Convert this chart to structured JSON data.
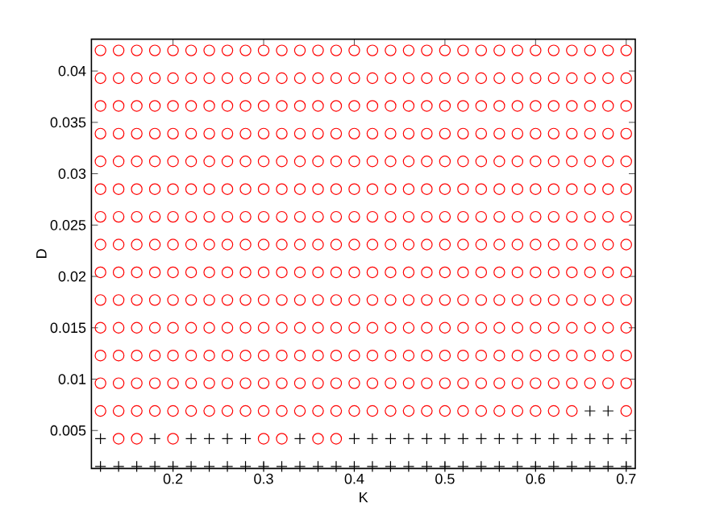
{
  "chart_data": {
    "type": "scatter",
    "xlabel": "K",
    "ylabel": "D",
    "xlim": [
      0.11,
      0.71
    ],
    "ylim": [
      0.0013,
      0.0431
    ],
    "xticks": [
      0.2,
      0.3,
      0.4,
      0.5,
      0.6,
      0.7
    ],
    "yticks": [
      0.005,
      0.01,
      0.015,
      0.02,
      0.025,
      0.03,
      0.035,
      0.04
    ],
    "series": [
      {
        "color": "#ff0000",
        "marker": "circle",
        "x": [
          0.14,
          0.16,
          0.2,
          0.3,
          0.32,
          0.36,
          0.38,
          0.12,
          0.14,
          0.16,
          0.18,
          0.2,
          0.22,
          0.24,
          0.26,
          0.28,
          0.3,
          0.32,
          0.34,
          0.36,
          0.38,
          0.4,
          0.42,
          0.44,
          0.46,
          0.48,
          0.5,
          0.52,
          0.54,
          0.56,
          0.58,
          0.6,
          0.62,
          0.64,
          0.7,
          0.12,
          0.14,
          0.16,
          0.18,
          0.2,
          0.22,
          0.24,
          0.26,
          0.28,
          0.3,
          0.32,
          0.34,
          0.36,
          0.38,
          0.4,
          0.42,
          0.44,
          0.46,
          0.48,
          0.5,
          0.52,
          0.54,
          0.56,
          0.58,
          0.6,
          0.62,
          0.64,
          0.66,
          0.68,
          0.7,
          0.12,
          0.14,
          0.16,
          0.18,
          0.2,
          0.22,
          0.24,
          0.26,
          0.28,
          0.3,
          0.32,
          0.34,
          0.36,
          0.38,
          0.4,
          0.42,
          0.44,
          0.46,
          0.48,
          0.5,
          0.52,
          0.54,
          0.56,
          0.58,
          0.6,
          0.62,
          0.64,
          0.66,
          0.68,
          0.7,
          0.12,
          0.14,
          0.16,
          0.18,
          0.2,
          0.22,
          0.24,
          0.26,
          0.28,
          0.3,
          0.32,
          0.34,
          0.36,
          0.38,
          0.4,
          0.42,
          0.44,
          0.46,
          0.48,
          0.5,
          0.52,
          0.54,
          0.56,
          0.58,
          0.6,
          0.62,
          0.64,
          0.66,
          0.68,
          0.7,
          0.12,
          0.14,
          0.16,
          0.18,
          0.2,
          0.22,
          0.24,
          0.26,
          0.28,
          0.3,
          0.32,
          0.34,
          0.36,
          0.38,
          0.4,
          0.42,
          0.44,
          0.46,
          0.48,
          0.5,
          0.52,
          0.54,
          0.56,
          0.58,
          0.6,
          0.62,
          0.64,
          0.66,
          0.68,
          0.7,
          0.12,
          0.14,
          0.16,
          0.18,
          0.2,
          0.22,
          0.24,
          0.26,
          0.28,
          0.3,
          0.32,
          0.34,
          0.36,
          0.38,
          0.4,
          0.42,
          0.44,
          0.46,
          0.48,
          0.5,
          0.52,
          0.54,
          0.56,
          0.58,
          0.6,
          0.62,
          0.64,
          0.66,
          0.68,
          0.7,
          0.12,
          0.14,
          0.16,
          0.18,
          0.2,
          0.22,
          0.24,
          0.26,
          0.28,
          0.3,
          0.32,
          0.34,
          0.36,
          0.38,
          0.4,
          0.42,
          0.44,
          0.46,
          0.48,
          0.5,
          0.52,
          0.54,
          0.56,
          0.58,
          0.6,
          0.62,
          0.64,
          0.66,
          0.68,
          0.7,
          0.12,
          0.14,
          0.16,
          0.18,
          0.2,
          0.22,
          0.24,
          0.26,
          0.28,
          0.3,
          0.32,
          0.34,
          0.36,
          0.38,
          0.4,
          0.42,
          0.44,
          0.46,
          0.48,
          0.5,
          0.52,
          0.54,
          0.56,
          0.58,
          0.6,
          0.62,
          0.64,
          0.66,
          0.68,
          0.7,
          0.12,
          0.14,
          0.16,
          0.18,
          0.2,
          0.22,
          0.24,
          0.26,
          0.28,
          0.3,
          0.32,
          0.34,
          0.36,
          0.38,
          0.4,
          0.42,
          0.44,
          0.46,
          0.48,
          0.5,
          0.52,
          0.54,
          0.56,
          0.58,
          0.6,
          0.62,
          0.64,
          0.66,
          0.68,
          0.7,
          0.12,
          0.14,
          0.16,
          0.18,
          0.2,
          0.22,
          0.24,
          0.26,
          0.28,
          0.3,
          0.32,
          0.34,
          0.36,
          0.38,
          0.4,
          0.42,
          0.44,
          0.46,
          0.48,
          0.5,
          0.52,
          0.54,
          0.56,
          0.58,
          0.6,
          0.62,
          0.64,
          0.66,
          0.68,
          0.7,
          0.12,
          0.14,
          0.16,
          0.18,
          0.2,
          0.22,
          0.24,
          0.26,
          0.28,
          0.3,
          0.32,
          0.34,
          0.36,
          0.38,
          0.4,
          0.42,
          0.44,
          0.46,
          0.48,
          0.5,
          0.52,
          0.54,
          0.56,
          0.58,
          0.6,
          0.62,
          0.64,
          0.66,
          0.68,
          0.7,
          0.12,
          0.14,
          0.16,
          0.18,
          0.2,
          0.22,
          0.24,
          0.26,
          0.28,
          0.3,
          0.32,
          0.34,
          0.36,
          0.38,
          0.4,
          0.42,
          0.44,
          0.46,
          0.48,
          0.5,
          0.52,
          0.54,
          0.56,
          0.58,
          0.6,
          0.62,
          0.64,
          0.66,
          0.68,
          0.7,
          0.12,
          0.14,
          0.16,
          0.18,
          0.2,
          0.22,
          0.24,
          0.26,
          0.28,
          0.3,
          0.32,
          0.34,
          0.36,
          0.38,
          0.4,
          0.42,
          0.44,
          0.46,
          0.48,
          0.5,
          0.52,
          0.54,
          0.56,
          0.58,
          0.6,
          0.62,
          0.64,
          0.66,
          0.68,
          0.7,
          0.12,
          0.14,
          0.16,
          0.18,
          0.2,
          0.22,
          0.24,
          0.26,
          0.28,
          0.3,
          0.32,
          0.34,
          0.36,
          0.38,
          0.4,
          0.42,
          0.44,
          0.46,
          0.48,
          0.5,
          0.52,
          0.54,
          0.56,
          0.58,
          0.6,
          0.62,
          0.64,
          0.66,
          0.68,
          0.7
        ],
        "values": [
          0.0042,
          0.0042,
          0.0042,
          0.0042,
          0.0042,
          0.0042,
          0.0042,
          0.0069,
          0.0069,
          0.0069,
          0.0069,
          0.0069,
          0.0069,
          0.0069,
          0.0069,
          0.0069,
          0.0069,
          0.0069,
          0.0069,
          0.0069,
          0.0069,
          0.0069,
          0.0069,
          0.0069,
          0.0069,
          0.0069,
          0.0069,
          0.0069,
          0.0069,
          0.0069,
          0.0069,
          0.0069,
          0.0069,
          0.0069,
          0.0069,
          0.0096,
          0.0096,
          0.0096,
          0.0096,
          0.0096,
          0.0096,
          0.0096,
          0.0096,
          0.0096,
          0.0096,
          0.0096,
          0.0096,
          0.0096,
          0.0096,
          0.0096,
          0.0096,
          0.0096,
          0.0096,
          0.0096,
          0.0096,
          0.0096,
          0.0096,
          0.0096,
          0.0096,
          0.0096,
          0.0096,
          0.0096,
          0.0096,
          0.0096,
          0.0096,
          0.0123,
          0.0123,
          0.0123,
          0.0123,
          0.0123,
          0.0123,
          0.0123,
          0.0123,
          0.0123,
          0.0123,
          0.0123,
          0.0123,
          0.0123,
          0.0123,
          0.0123,
          0.0123,
          0.0123,
          0.0123,
          0.0123,
          0.0123,
          0.0123,
          0.0123,
          0.0123,
          0.0123,
          0.0123,
          0.0123,
          0.0123,
          0.0123,
          0.0123,
          0.0123,
          0.015,
          0.015,
          0.015,
          0.015,
          0.015,
          0.015,
          0.015,
          0.015,
          0.015,
          0.015,
          0.015,
          0.015,
          0.015,
          0.015,
          0.015,
          0.015,
          0.015,
          0.015,
          0.015,
          0.015,
          0.015,
          0.015,
          0.015,
          0.015,
          0.015,
          0.015,
          0.015,
          0.015,
          0.015,
          0.015,
          0.0177,
          0.0177,
          0.0177,
          0.0177,
          0.0177,
          0.0177,
          0.0177,
          0.0177,
          0.0177,
          0.0177,
          0.0177,
          0.0177,
          0.0177,
          0.0177,
          0.0177,
          0.0177,
          0.0177,
          0.0177,
          0.0177,
          0.0177,
          0.0177,
          0.0177,
          0.0177,
          0.0177,
          0.0177,
          0.0177,
          0.0177,
          0.0177,
          0.0177,
          0.0177,
          0.0204,
          0.0204,
          0.0204,
          0.0204,
          0.0204,
          0.0204,
          0.0204,
          0.0204,
          0.0204,
          0.0204,
          0.0204,
          0.0204,
          0.0204,
          0.0204,
          0.0204,
          0.0204,
          0.0204,
          0.0204,
          0.0204,
          0.0204,
          0.0204,
          0.0204,
          0.0204,
          0.0204,
          0.0204,
          0.0204,
          0.0204,
          0.0204,
          0.0204,
          0.0204,
          0.0231,
          0.0231,
          0.0231,
          0.0231,
          0.0231,
          0.0231,
          0.0231,
          0.0231,
          0.0231,
          0.0231,
          0.0231,
          0.0231,
          0.0231,
          0.0231,
          0.0231,
          0.0231,
          0.0231,
          0.0231,
          0.0231,
          0.0231,
          0.0231,
          0.0231,
          0.0231,
          0.0231,
          0.0231,
          0.0231,
          0.0231,
          0.0231,
          0.0231,
          0.0231,
          0.0258,
          0.0258,
          0.0258,
          0.0258,
          0.0258,
          0.0258,
          0.0258,
          0.0258,
          0.0258,
          0.0258,
          0.0258,
          0.0258,
          0.0258,
          0.0258,
          0.0258,
          0.0258,
          0.0258,
          0.0258,
          0.0258,
          0.0258,
          0.0258,
          0.0258,
          0.0258,
          0.0258,
          0.0258,
          0.0258,
          0.0258,
          0.0258,
          0.0258,
          0.0258,
          0.0285,
          0.0285,
          0.0285,
          0.0285,
          0.0285,
          0.0285,
          0.0285,
          0.0285,
          0.0285,
          0.0285,
          0.0285,
          0.0285,
          0.0285,
          0.0285,
          0.0285,
          0.0285,
          0.0285,
          0.0285,
          0.0285,
          0.0285,
          0.0285,
          0.0285,
          0.0285,
          0.0285,
          0.0285,
          0.0285,
          0.0285,
          0.0285,
          0.0285,
          0.0285,
          0.0312,
          0.0312,
          0.0312,
          0.0312,
          0.0312,
          0.0312,
          0.0312,
          0.0312,
          0.0312,
          0.0312,
          0.0312,
          0.0312,
          0.0312,
          0.0312,
          0.0312,
          0.0312,
          0.0312,
          0.0312,
          0.0312,
          0.0312,
          0.0312,
          0.0312,
          0.0312,
          0.0312,
          0.0312,
          0.0312,
          0.0312,
          0.0312,
          0.0312,
          0.0312,
          0.0339,
          0.0339,
          0.0339,
          0.0339,
          0.0339,
          0.0339,
          0.0339,
          0.0339,
          0.0339,
          0.0339,
          0.0339,
          0.0339,
          0.0339,
          0.0339,
          0.0339,
          0.0339,
          0.0339,
          0.0339,
          0.0339,
          0.0339,
          0.0339,
          0.0339,
          0.0339,
          0.0339,
          0.0339,
          0.0339,
          0.0339,
          0.0339,
          0.0339,
          0.0339,
          0.0366,
          0.0366,
          0.0366,
          0.0366,
          0.0366,
          0.0366,
          0.0366,
          0.0366,
          0.0366,
          0.0366,
          0.0366,
          0.0366,
          0.0366,
          0.0366,
          0.0366,
          0.0366,
          0.0366,
          0.0366,
          0.0366,
          0.0366,
          0.0366,
          0.0366,
          0.0366,
          0.0366,
          0.0366,
          0.0366,
          0.0366,
          0.0366,
          0.0366,
          0.0366,
          0.0393,
          0.0393,
          0.0393,
          0.0393,
          0.0393,
          0.0393,
          0.0393,
          0.0393,
          0.0393,
          0.0393,
          0.0393,
          0.0393,
          0.0393,
          0.0393,
          0.0393,
          0.0393,
          0.0393,
          0.0393,
          0.0393,
          0.0393,
          0.0393,
          0.0393,
          0.0393,
          0.0393,
          0.0393,
          0.0393,
          0.0393,
          0.0393,
          0.0393,
          0.0393,
          0.042,
          0.042,
          0.042,
          0.042,
          0.042,
          0.042,
          0.042,
          0.042,
          0.042,
          0.042,
          0.042,
          0.042,
          0.042,
          0.042,
          0.042,
          0.042,
          0.042,
          0.042,
          0.042,
          0.042,
          0.042,
          0.042,
          0.042,
          0.042,
          0.042,
          0.042,
          0.042,
          0.042,
          0.042,
          0.042
        ]
      },
      {
        "color": "#000000",
        "marker": "cross",
        "x": [
          0.12,
          0.14,
          0.16,
          0.18,
          0.2,
          0.22,
          0.24,
          0.26,
          0.28,
          0.3,
          0.32,
          0.34,
          0.36,
          0.38,
          0.4,
          0.42,
          0.44,
          0.46,
          0.48,
          0.5,
          0.52,
          0.54,
          0.56,
          0.58,
          0.6,
          0.62,
          0.64,
          0.66,
          0.68,
          0.7,
          0.12,
          0.18,
          0.22,
          0.24,
          0.26,
          0.28,
          0.34,
          0.4,
          0.42,
          0.44,
          0.46,
          0.48,
          0.5,
          0.52,
          0.54,
          0.56,
          0.58,
          0.6,
          0.62,
          0.64,
          0.66,
          0.68,
          0.7,
          0.66,
          0.68
        ],
        "values": [
          0.0015,
          0.0015,
          0.0015,
          0.0015,
          0.0015,
          0.0015,
          0.0015,
          0.0015,
          0.0015,
          0.0015,
          0.0015,
          0.0015,
          0.0015,
          0.0015,
          0.0015,
          0.0015,
          0.0015,
          0.0015,
          0.0015,
          0.0015,
          0.0015,
          0.0015,
          0.0015,
          0.0015,
          0.0015,
          0.0015,
          0.0015,
          0.0015,
          0.0015,
          0.0015,
          0.0042,
          0.0042,
          0.0042,
          0.0042,
          0.0042,
          0.0042,
          0.0042,
          0.0042,
          0.0042,
          0.0042,
          0.0042,
          0.0042,
          0.0042,
          0.0042,
          0.0042,
          0.0042,
          0.0042,
          0.0042,
          0.0042,
          0.0042,
          0.0042,
          0.0042,
          0.0042,
          0.0069,
          0.0069
        ]
      }
    ]
  }
}
